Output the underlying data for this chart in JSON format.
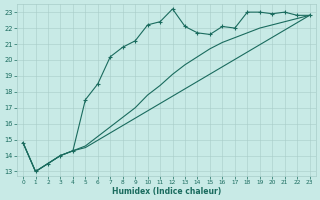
{
  "xlabel": "Humidex (Indice chaleur)",
  "bg_color": "#c8eae6",
  "line_color": "#1a6b5e",
  "grid_color": "#a8ccc8",
  "xlim": [
    -0.5,
    23.5
  ],
  "ylim": [
    12.7,
    23.5
  ],
  "yticks": [
    13,
    14,
    15,
    16,
    17,
    18,
    19,
    20,
    21,
    22,
    23
  ],
  "xticks": [
    0,
    1,
    2,
    3,
    4,
    5,
    6,
    7,
    8,
    9,
    10,
    11,
    12,
    13,
    14,
    15,
    16,
    17,
    18,
    19,
    20,
    21,
    22,
    23
  ],
  "line1_x": [
    0,
    1,
    2,
    3,
    4,
    5,
    6,
    7,
    8,
    9,
    10,
    11,
    12,
    13,
    14,
    15,
    16,
    17,
    18,
    19,
    20,
    21,
    22,
    23
  ],
  "line1_y": [
    14.8,
    13.0,
    13.5,
    14.0,
    14.3,
    17.5,
    18.5,
    20.2,
    20.8,
    21.2,
    22.2,
    22.4,
    23.2,
    22.1,
    21.7,
    21.6,
    22.1,
    22.0,
    23.0,
    23.0,
    22.9,
    23.0,
    22.8,
    22.8
  ],
  "line2_x": [
    0,
    1,
    2,
    3,
    4,
    5,
    6,
    7,
    8,
    9,
    10,
    11,
    12,
    13,
    14,
    15,
    16,
    17,
    18,
    19,
    20,
    21,
    22,
    23
  ],
  "line2_y": [
    14.8,
    13.0,
    13.5,
    14.0,
    14.3,
    14.6,
    15.2,
    15.8,
    16.4,
    17.0,
    17.8,
    18.4,
    19.1,
    19.7,
    20.2,
    20.7,
    21.1,
    21.4,
    21.7,
    22.0,
    22.2,
    22.4,
    22.6,
    22.8
  ],
  "line3_x": [
    0,
    1,
    2,
    3,
    4,
    5,
    23
  ],
  "line3_y": [
    14.8,
    13.0,
    13.5,
    14.0,
    14.3,
    14.5,
    22.8
  ],
  "xlabel_fontsize": 5.5,
  "tick_fontsize": 4.5
}
